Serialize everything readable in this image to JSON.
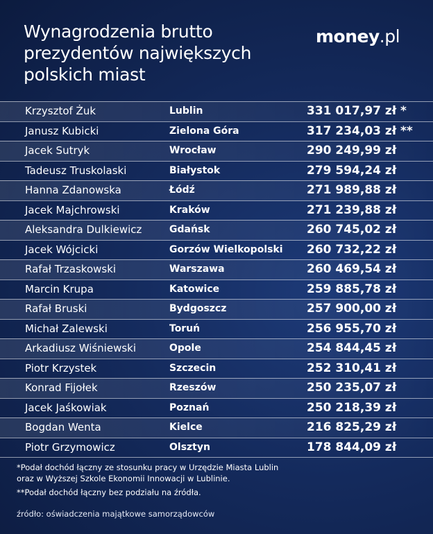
{
  "title": {
    "line1": "Wynagrodzenia brutto",
    "line2": "prezydentów największych",
    "line3": "polskich miast"
  },
  "logo": {
    "brand": "money",
    "suffix": ".pl"
  },
  "rows": [
    {
      "name": "Krzysztof Żuk",
      "city": "Lublin",
      "amount": "331 017,97 zł *"
    },
    {
      "name": "Janusz Kubicki",
      "city": "Zielona Góra",
      "amount": "317 234,03 zł **"
    },
    {
      "name": "Jacek Sutryk",
      "city": "Wrocław",
      "amount": "290 249,99 zł"
    },
    {
      "name": "Tadeusz Truskolaski",
      "city": "Białystok",
      "amount": "279 594,24 zł"
    },
    {
      "name": "Hanna Zdanowska",
      "city": "Łódź",
      "amount": "271 989,88 zł"
    },
    {
      "name": "Jacek Majchrowski",
      "city": "Kraków",
      "amount": "271 239,88 zł"
    },
    {
      "name": "Aleksandra Dulkiewicz",
      "city": "Gdańsk",
      "amount": "260 745,02 zł"
    },
    {
      "name": "Jacek Wójcicki",
      "city": "Gorzów Wielkopolski",
      "amount": "260 732,22 zł"
    },
    {
      "name": "Rafał Trzaskowski",
      "city": "Warszawa",
      "amount": "260 469,54 zł"
    },
    {
      "name": "Marcin Krupa",
      "city": "Katowice",
      "amount": "259 885,78 zł"
    },
    {
      "name": "Rafał Bruski",
      "city": "Bydgoszcz",
      "amount": "257 900,00 zł"
    },
    {
      "name": "Michał Zalewski",
      "city": "Toruń",
      "amount": "256 955,70 zł"
    },
    {
      "name": "Arkadiusz Wiśniewski",
      "city": "Opole",
      "amount": "254 844,45 zł"
    },
    {
      "name": "Piotr Krzystek",
      "city": "Szczecin",
      "amount": "252 310,41 zł"
    },
    {
      "name": "Konrad Fijołek",
      "city": "Rzeszów",
      "amount": "250 235,07 zł"
    },
    {
      "name": "Jacek Jaśkowiak",
      "city": "Poznań",
      "amount": "250 218,39 zł"
    },
    {
      "name": "Bogdan Wenta",
      "city": "Kielce",
      "amount": "216 825,29 zł"
    },
    {
      "name": "Piotr Grzymowicz",
      "city": "Olsztyn",
      "amount": "178 844,09 zł"
    }
  ],
  "notes": {
    "note1_line1": "*Podał dochód łączny ze stosunku pracy w Urzędzie Miasta Lublin",
    "note1_line2": "oraz w Wyższej Szkole Ekonomii Innowacji w Lublinie.",
    "note2": "**Podał dochód łączny bez podziału na źródła."
  },
  "source": "źródło: oświadczenia majątkowe samorządowców"
}
